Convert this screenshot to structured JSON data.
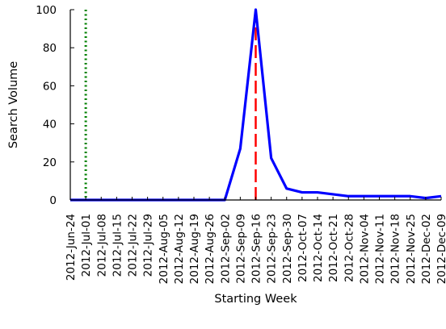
{
  "chart_data": {
    "type": "line",
    "xlabel": "Starting Week",
    "ylabel": "Search Volume",
    "ylim": [
      0,
      100
    ],
    "y_ticks": [
      0,
      20,
      40,
      60,
      80,
      100
    ],
    "grid": false,
    "categories": [
      "2012-Jun-24",
      "2012-Jul-01",
      "2012-Jul-08",
      "2012-Jul-15",
      "2012-Jul-22",
      "2012-Jul-29",
      "2012-Aug-05",
      "2012-Aug-12",
      "2012-Aug-19",
      "2012-Aug-26",
      "2012-Sep-02",
      "2012-Sep-09",
      "2012-Sep-16",
      "2012-Sep-23",
      "2012-Sep-30",
      "2012-Oct-07",
      "2012-Oct-14",
      "2012-Oct-21",
      "2012-Oct-28",
      "2012-Nov-04",
      "2012-Nov-11",
      "2012-Nov-18",
      "2012-Nov-25",
      "2012-Dec-02",
      "2012-Dec-09"
    ],
    "series": [
      {
        "color": "#0000ff",
        "values": [
          0,
          0,
          0,
          0,
          0,
          0,
          0,
          0,
          0,
          0,
          0,
          27,
          100,
          22,
          6,
          4,
          4,
          3,
          2,
          2,
          2,
          2,
          2,
          1,
          2
        ]
      }
    ],
    "vertical_lines": [
      {
        "category": "2012-Jul-01",
        "color": "#008000",
        "style": "dotted"
      },
      {
        "category": "2012-Sep-16",
        "color": "#ff0000",
        "style": "dashed"
      }
    ]
  }
}
